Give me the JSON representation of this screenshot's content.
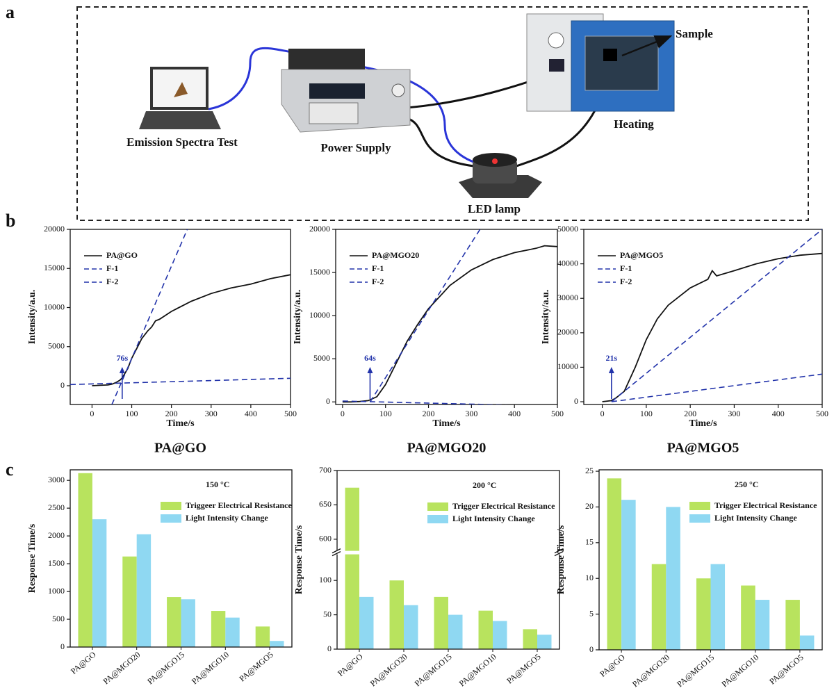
{
  "panel_labels": [
    "a",
    "b",
    "c"
  ],
  "setup": {
    "labels": [
      "Emission Spectra Test",
      "Power Supply",
      "LED lamp",
      "Heating",
      "Sample"
    ]
  },
  "chart_data": [
    {
      "type": "line",
      "caption": "PA@GO",
      "x_label": "Time/s",
      "y_label": "Intensity/a.u.",
      "xlim": [
        -55,
        500
      ],
      "ylim": [
        -2400,
        20000
      ],
      "xticks": [
        0,
        100,
        200,
        300,
        400,
        500
      ],
      "yticks": [
        0,
        5000,
        10000,
        15000,
        20000
      ],
      "series": [
        {
          "name": "PA@GO",
          "color": "#111111",
          "dashed": false,
          "x": [
            0,
            20,
            40,
            50,
            60,
            70,
            76,
            90,
            100,
            115,
            125,
            140,
            150,
            160,
            170,
            200,
            250,
            300,
            350,
            400,
            450,
            500
          ],
          "values": [
            0,
            50,
            100,
            200,
            400,
            700,
            1000,
            2200,
            3500,
            5000,
            6000,
            7000,
            7500,
            8300,
            8500,
            9500,
            10800,
            11800,
            12500,
            13000,
            13700,
            14200
          ]
        },
        {
          "name": "F-1",
          "color": "#2233aa",
          "dashed": true,
          "x": [
            50,
            240
          ],
          "values": [
            -2400,
            20000
          ]
        },
        {
          "name": "F-2",
          "color": "#2233aa",
          "dashed": true,
          "x": [
            -55,
            500
          ],
          "values": [
            150,
            950
          ]
        }
      ],
      "annotations": [
        {
          "text": "76s",
          "x": 76
        }
      ]
    },
    {
      "type": "line",
      "caption": "PA@MGO20",
      "x_label": "Time/s",
      "y_label": "Intensity/a.u.",
      "xlim": [
        -16,
        500
      ],
      "ylim": [
        -300,
        20000
      ],
      "xticks": [
        0,
        100,
        200,
        300,
        400,
        500
      ],
      "yticks": [
        0,
        5000,
        10000,
        15000,
        20000
      ],
      "series": [
        {
          "name": "PA@MGO20",
          "color": "#111111",
          "dashed": false,
          "x": [
            0,
            20,
            40,
            60,
            80,
            100,
            125,
            150,
            175,
            200,
            250,
            300,
            350,
            400,
            450,
            470,
            500
          ],
          "values": [
            0,
            0,
            50,
            150,
            600,
            2000,
            4500,
            7000,
            9000,
            10800,
            13500,
            15300,
            16500,
            17300,
            17800,
            18100,
            18000
          ]
        },
        {
          "name": "F-1",
          "color": "#2233aa",
          "dashed": true,
          "x": [
            64,
            320
          ],
          "values": [
            0,
            20000
          ]
        },
        {
          "name": "F-2",
          "color": "#2233aa",
          "dashed": true,
          "x": [
            0,
            500
          ],
          "values": [
            100,
            -500
          ]
        }
      ],
      "annotations": [
        {
          "text": "64s",
          "x": 64
        }
      ]
    },
    {
      "type": "line",
      "caption": "PA@MGO5",
      "x_label": "Time/s",
      "y_label": "Intensity/a.u.",
      "xlim": [
        -42,
        500
      ],
      "ylim": [
        -800,
        50000
      ],
      "xticks": [
        0,
        100,
        200,
        300,
        400,
        500
      ],
      "yticks": [
        0,
        10000,
        20000,
        30000,
        40000,
        50000
      ],
      "series": [
        {
          "name": "PA@MGO5",
          "color": "#111111",
          "dashed": false,
          "x": [
            0,
            20,
            30,
            50,
            75,
            100,
            125,
            150,
            200,
            240,
            250,
            260,
            300,
            350,
            400,
            450,
            500
          ],
          "values": [
            0,
            300,
            1000,
            3000,
            10000,
            18000,
            24000,
            28000,
            33000,
            35500,
            38000,
            36500,
            38000,
            40000,
            41500,
            42500,
            43000
          ]
        },
        {
          "name": "F-1",
          "color": "#2233aa",
          "dashed": true,
          "x": [
            21,
            500
          ],
          "values": [
            0,
            50000
          ]
        },
        {
          "name": "F-2",
          "color": "#2233aa",
          "dashed": true,
          "x": [
            21,
            500
          ],
          "values": [
            0,
            8000
          ]
        }
      ],
      "annotations": [
        {
          "text": "21s",
          "x": 21
        }
      ]
    },
    {
      "type": "bar",
      "y_label": "Response Time/s",
      "note": "150 °C",
      "categories": [
        "PA@GO",
        "PA@MGO20",
        "PA@MGO15",
        "PA@MGO10",
        "PA@MGO5"
      ],
      "ylim": [
        0,
        3190
      ],
      "yticks": [
        0,
        500,
        1000,
        1500,
        2000,
        2500,
        3000
      ],
      "series": [
        {
          "name": "Triggeer Electrical Resistance",
          "color": "#b8e35e",
          "values": [
            3130,
            1630,
            900,
            650,
            370
          ]
        },
        {
          "name": "Light Intensity Change",
          "color": "#8fd8f2",
          "values": [
            2300,
            2030,
            860,
            530,
            110
          ]
        }
      ]
    },
    {
      "type": "bar",
      "y_label": "Response Time/s",
      "note": "200 °C",
      "categories": [
        "PA@GO",
        "PA@MGO20",
        "PA@MGO15",
        "PA@MGO10",
        "PA@MGO5"
      ],
      "ylim": [
        0,
        700
      ],
      "axis_break": [
        140,
        580
      ],
      "yticks": [
        0,
        50,
        100,
        600,
        650,
        700
      ],
      "series": [
        {
          "name": "Trigger Electrical Resistance",
          "color": "#b8e35e",
          "values": [
            675,
            100,
            76,
            56,
            29
          ]
        },
        {
          "name": "Light Intensity Change",
          "color": "#8fd8f2",
          "values": [
            76,
            64,
            50,
            41,
            21
          ]
        }
      ]
    },
    {
      "type": "bar",
      "y_label": "Response Time/s",
      "note": "250 °C",
      "categories": [
        "PA@GO",
        "PA@MGO20",
        "PA@MGO15",
        "PA@MGO10",
        "PA@MGO5"
      ],
      "ylim": [
        0,
        25.2
      ],
      "yticks": [
        0,
        5,
        10,
        15,
        20,
        25
      ],
      "series": [
        {
          "name": "Trigger Electrical Resistance",
          "color": "#b8e35e",
          "values": [
            24,
            12,
            10,
            9,
            7
          ]
        },
        {
          "name": "Light Intensity Change",
          "color": "#8fd8f2",
          "values": [
            21,
            20,
            12,
            7,
            2
          ]
        }
      ]
    }
  ]
}
